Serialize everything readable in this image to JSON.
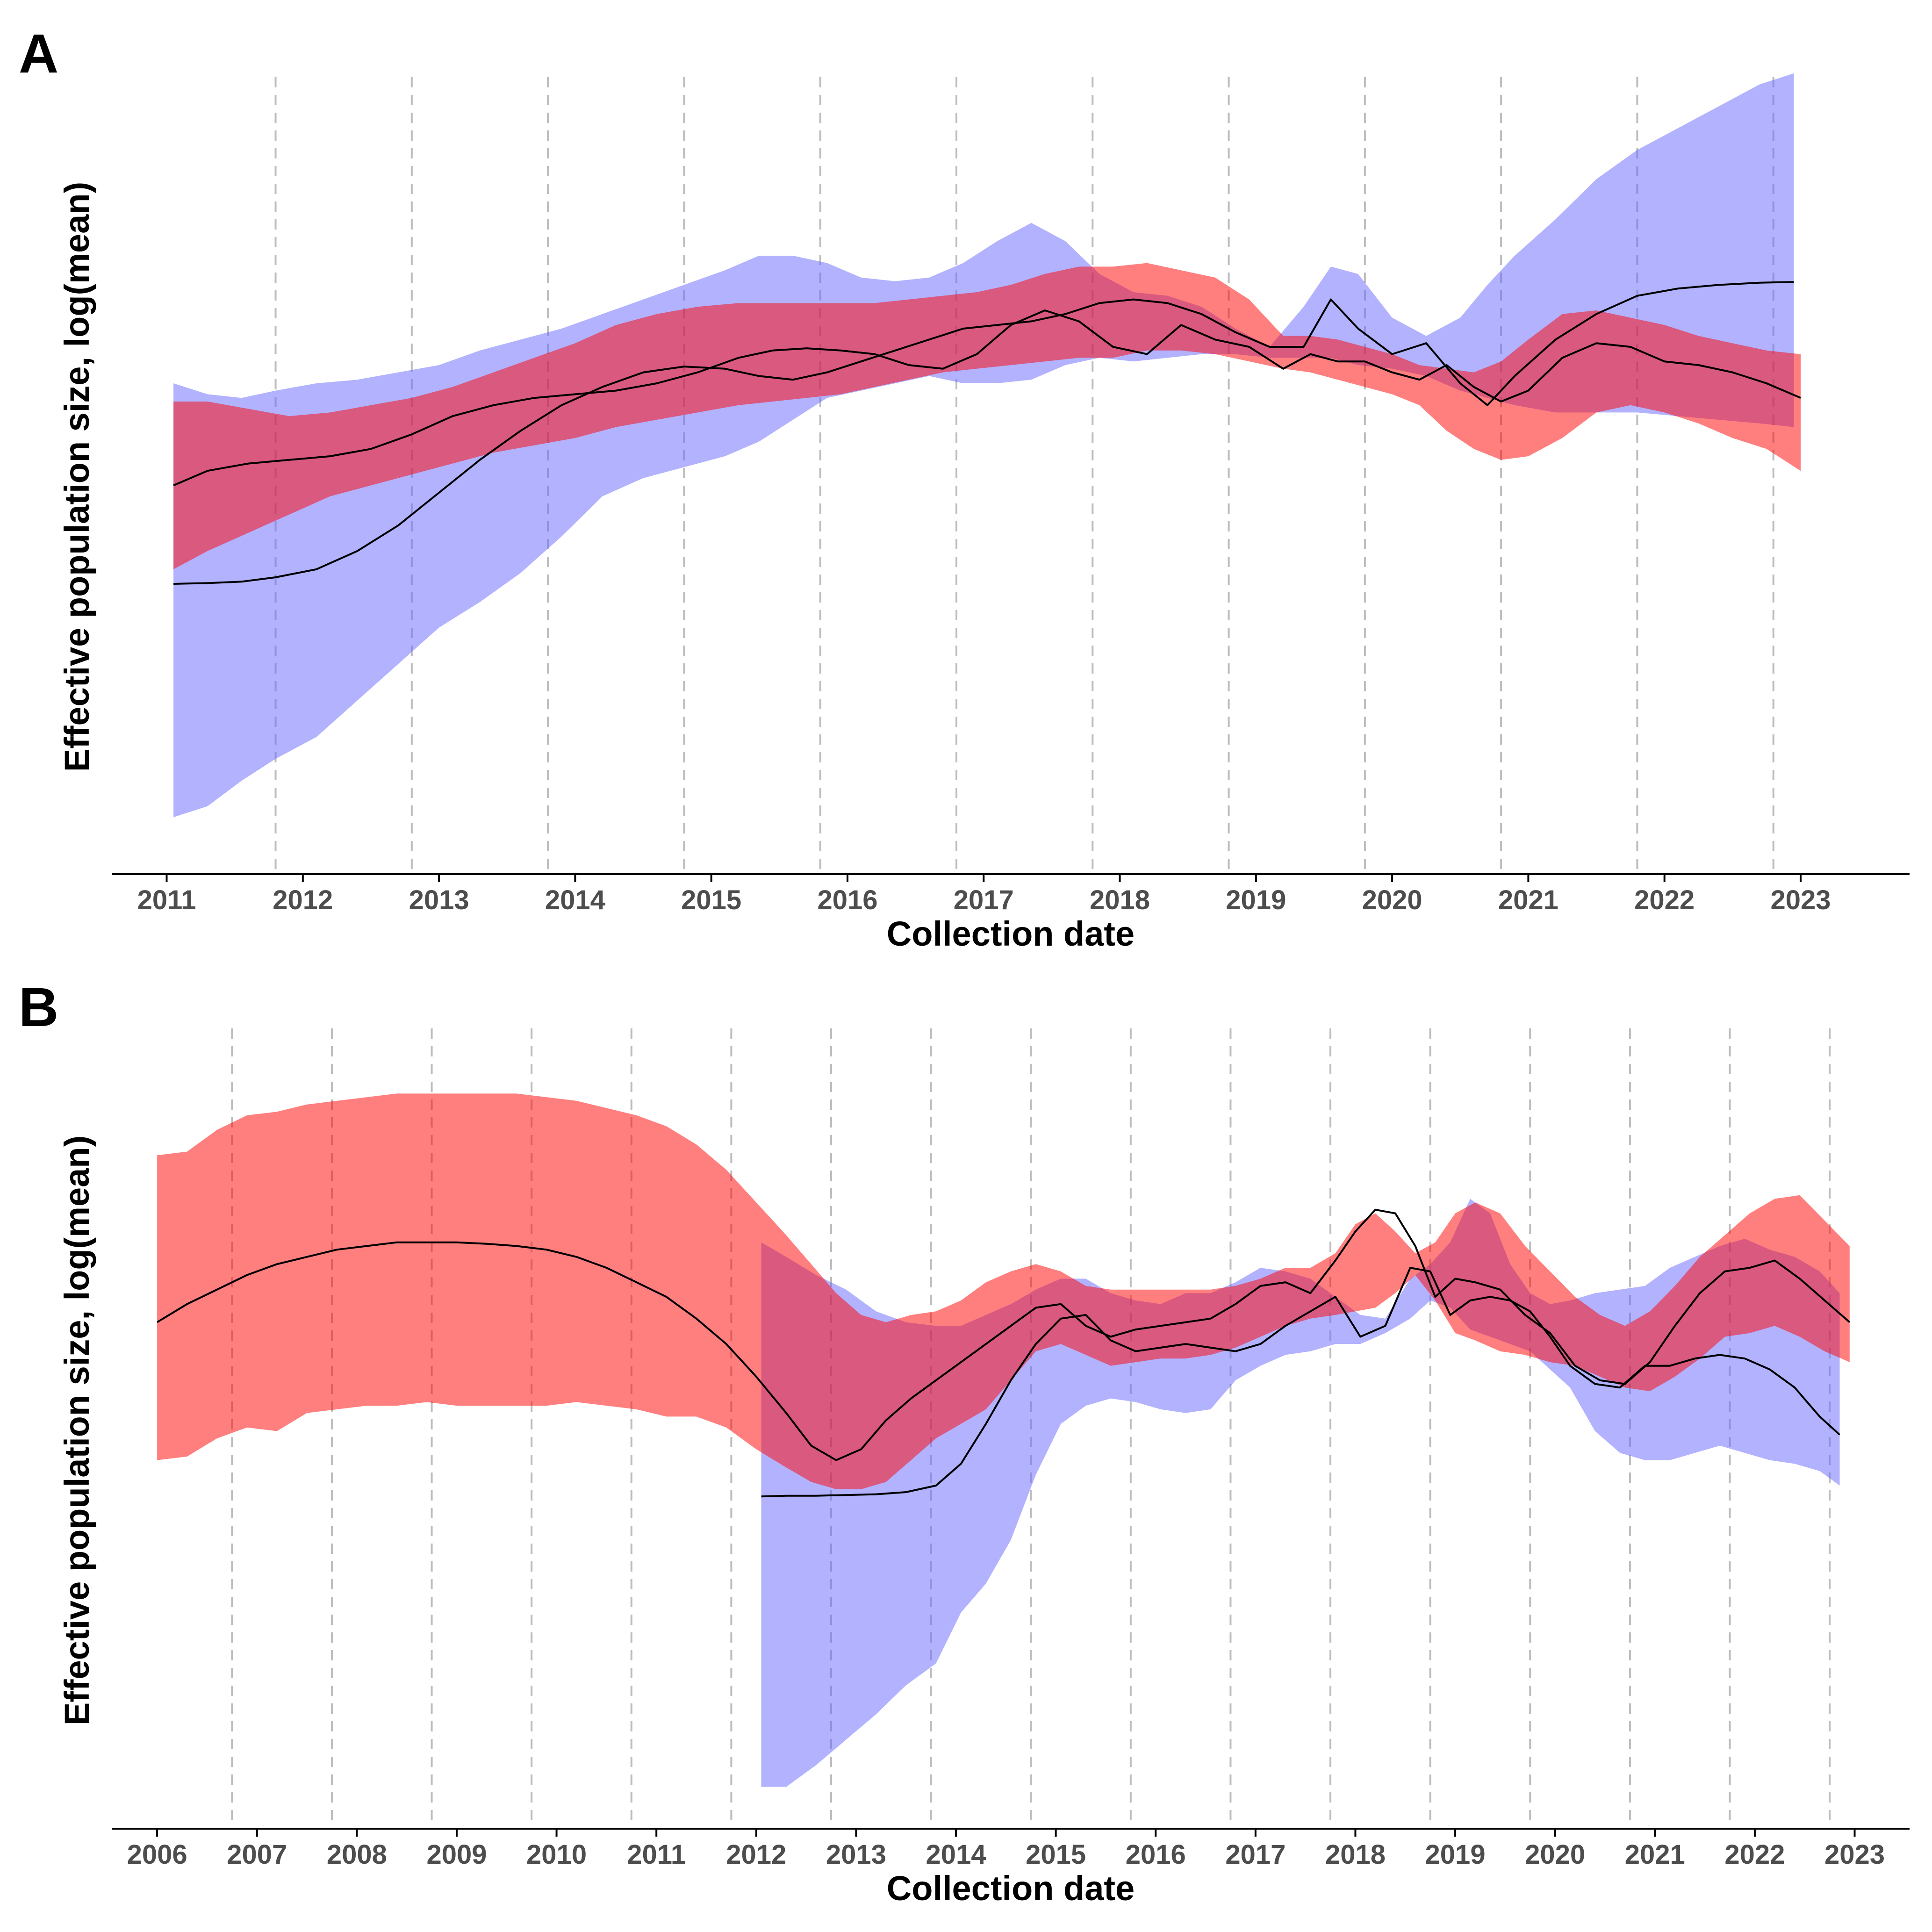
{
  "chart_data": [
    {
      "panel": "A",
      "type": "area",
      "xlabel": "Collection date",
      "ylabel": "Effective population size, log(mean)",
      "xlim": [
        2010.6,
        2023.8
      ],
      "ylim": [
        0,
        100
      ],
      "x_ticks": [
        2011,
        2012,
        2013,
        2014,
        2015,
        2016,
        2017,
        2018,
        2019,
        2020,
        2021,
        2022,
        2023
      ],
      "reference_lines": [
        2011.8,
        2012.8,
        2013.8,
        2014.8,
        2015.8,
        2016.8,
        2017.8,
        2018.8,
        2019.8,
        2020.8,
        2021.8,
        2022.8
      ],
      "grid": false,
      "series": [
        {
          "color": "#6666ff",
          "opacity": 0.5,
          "x": [
            2011.05,
            2011.3,
            2011.55,
            2011.8,
            2012.1,
            2012.4,
            2012.7,
            2013.0,
            2013.3,
            2013.6,
            2013.9,
            2014.2,
            2014.5,
            2014.8,
            2015.1,
            2015.35,
            2015.6,
            2015.85,
            2016.1,
            2016.35,
            2016.6,
            2016.85,
            2017.1,
            2017.35,
            2017.6,
            2017.85,
            2018.1,
            2018.35,
            2018.6,
            2018.85,
            2019.1,
            2019.35,
            2019.55,
            2019.75,
            2020.0,
            2020.25,
            2020.5,
            2020.7,
            2020.9,
            2021.2,
            2021.5,
            2021.8,
            2022.1,
            2022.4,
            2022.7,
            2022.95
          ],
          "mean": [
            35.0,
            35.1,
            35.3,
            35.9,
            37.0,
            39.5,
            43.0,
            47.5,
            52.0,
            56.0,
            59.5,
            62.0,
            64.0,
            64.8,
            64.5,
            63.5,
            63.0,
            64.0,
            65.5,
            67.0,
            68.5,
            70.0,
            70.5,
            71.0,
            72.0,
            73.5,
            74.0,
            73.5,
            72.0,
            69.5,
            67.5,
            67.5,
            74.0,
            70.0,
            66.5,
            68.0,
            62.5,
            59.5,
            63.5,
            68.5,
            72.0,
            74.5,
            75.5,
            76.0,
            76.3,
            76.4
          ],
          "lower": [
            3.0,
            4.5,
            8.0,
            11.0,
            14.0,
            19.0,
            24.0,
            29.0,
            32.5,
            36.5,
            41.5,
            47.0,
            49.5,
            51.0,
            52.5,
            54.5,
            57.5,
            60.5,
            61.5,
            62.5,
            63.5,
            62.5,
            62.5,
            63.0,
            65.0,
            66.0,
            65.5,
            66.0,
            66.5,
            66.5,
            66.0,
            66.0,
            66.0,
            65.0,
            64.5,
            63.5,
            61.5,
            60.5,
            59.5,
            58.5,
            58.5,
            58.5,
            58.0,
            57.5,
            57.0,
            56.5
          ],
          "upper": [
            62.5,
            61.0,
            60.5,
            61.5,
            62.5,
            63.0,
            64.0,
            65.0,
            67.0,
            68.5,
            70.0,
            72.0,
            74.0,
            76.0,
            78.0,
            80.0,
            80.0,
            79.0,
            77.0,
            76.5,
            77.0,
            79.0,
            82.0,
            84.5,
            82.0,
            77.5,
            75.0,
            74.5,
            73.0,
            70.0,
            67.5,
            73.0,
            78.5,
            77.5,
            71.5,
            69.0,
            71.5,
            76.0,
            80.0,
            85.0,
            90.5,
            94.5,
            97.5,
            100.5,
            103.5,
            105.0
          ]
        },
        {
          "color": "#ff0000",
          "opacity": 0.5,
          "x": [
            2011.05,
            2011.3,
            2011.6,
            2011.9,
            2012.2,
            2012.5,
            2012.8,
            2013.1,
            2013.4,
            2013.7,
            2014.0,
            2014.3,
            2014.6,
            2014.9,
            2015.2,
            2015.45,
            2015.7,
            2015.95,
            2016.2,
            2016.45,
            2016.7,
            2016.95,
            2017.2,
            2017.45,
            2017.7,
            2017.95,
            2018.2,
            2018.45,
            2018.7,
            2018.95,
            2019.2,
            2019.4,
            2019.6,
            2019.8,
            2020.0,
            2020.2,
            2020.4,
            2020.6,
            2020.8,
            2021.0,
            2021.25,
            2021.5,
            2021.75,
            2022.0,
            2022.25,
            2022.5,
            2022.75,
            2023.0
          ],
          "mean": [
            48.5,
            50.5,
            51.5,
            52.0,
            52.5,
            53.5,
            55.5,
            58.0,
            59.5,
            60.5,
            61.0,
            61.5,
            62.5,
            64.0,
            66.0,
            67.0,
            67.3,
            67.0,
            66.5,
            65.0,
            64.5,
            66.5,
            70.5,
            72.5,
            71.0,
            67.5,
            66.5,
            70.5,
            68.5,
            67.5,
            64.5,
            66.5,
            65.5,
            65.5,
            64.0,
            63.0,
            65.0,
            62.0,
            60.0,
            61.5,
            66.0,
            68.0,
            67.5,
            65.5,
            65.0,
            64.0,
            62.5,
            60.5
          ],
          "lower": [
            37.0,
            39.5,
            42.0,
            44.5,
            47.0,
            48.5,
            50.0,
            51.5,
            53.0,
            54.0,
            55.0,
            56.5,
            57.5,
            58.5,
            59.5,
            60.0,
            60.5,
            61.0,
            62.0,
            63.0,
            64.0,
            64.5,
            65.0,
            65.5,
            66.0,
            66.0,
            67.0,
            67.0,
            66.5,
            65.5,
            64.5,
            64.0,
            63.0,
            62.0,
            61.0,
            59.5,
            56.0,
            53.5,
            52.0,
            52.5,
            55.0,
            58.5,
            59.5,
            58.5,
            57.0,
            55.0,
            53.5,
            50.5
          ],
          "upper": [
            60.0,
            60.0,
            59.0,
            58.0,
            58.5,
            59.5,
            60.5,
            62.0,
            64.0,
            66.0,
            68.0,
            70.5,
            72.0,
            73.0,
            73.5,
            73.5,
            73.5,
            73.5,
            73.5,
            74.0,
            74.5,
            75.0,
            76.0,
            77.5,
            78.5,
            78.5,
            79.0,
            78.0,
            77.0,
            74.0,
            69.0,
            69.0,
            68.5,
            67.5,
            66.5,
            65.0,
            64.5,
            64.0,
            65.5,
            68.5,
            72.0,
            72.5,
            71.5,
            70.5,
            69.0,
            68.0,
            67.0,
            66.5
          ]
        }
      ]
    },
    {
      "panel": "B",
      "type": "area",
      "xlabel": "Collection date",
      "ylabel": "Effective population size, log(mean)",
      "xlim": [
        2005.55,
        2023.55
      ],
      "ylim": [
        0,
        100
      ],
      "x_ticks": [
        2006,
        2007,
        2008,
        2009,
        2010,
        2011,
        2012,
        2013,
        2014,
        2015,
        2016,
        2017,
        2018,
        2019,
        2020,
        2021,
        2022,
        2023
      ],
      "reference_lines": [
        2006.75,
        2007.75,
        2008.75,
        2009.75,
        2010.75,
        2011.75,
        2012.75,
        2013.75,
        2014.75,
        2015.75,
        2016.75,
        2017.75,
        2018.75,
        2019.75,
        2020.75,
        2021.75,
        2022.75
      ],
      "grid": false,
      "series": [
        {
          "color": "#6666ff",
          "opacity": 0.5,
          "x": [
            2012.05,
            2012.3,
            2012.6,
            2012.9,
            2013.2,
            2013.5,
            2013.8,
            2014.05,
            2014.3,
            2014.55,
            2014.8,
            2015.05,
            2015.3,
            2015.55,
            2015.8,
            2016.05,
            2016.3,
            2016.55,
            2016.8,
            2017.05,
            2017.3,
            2017.55,
            2017.8,
            2018.05,
            2018.3,
            2018.55,
            2018.75,
            2018.95,
            2019.15,
            2019.35,
            2019.55,
            2019.75,
            2019.95,
            2020.15,
            2020.4,
            2020.65,
            2020.9,
            2021.15,
            2021.4,
            2021.65,
            2021.9,
            2022.15,
            2022.4,
            2022.65,
            2022.85
          ],
          "mean": [
            41.0,
            41.1,
            41.1,
            41.2,
            41.3,
            41.6,
            42.5,
            45.5,
            51.0,
            57.0,
            62.0,
            65.5,
            66.0,
            62.5,
            61.0,
            61.5,
            62.0,
            61.5,
            61.0,
            62.0,
            64.5,
            66.5,
            68.5,
            63.0,
            64.5,
            72.5,
            72.0,
            66.0,
            68.0,
            68.5,
            68.0,
            66.5,
            63.0,
            59.0,
            56.5,
            56.0,
            59.0,
            59.0,
            60.0,
            60.5,
            60.0,
            58.5,
            56.0,
            52.0,
            49.5
          ],
          "lower": [
            1.0,
            1.0,
            4.0,
            7.5,
            11.0,
            15.0,
            18.0,
            25.0,
            29.0,
            35.0,
            44.0,
            51.0,
            53.5,
            54.5,
            54.0,
            53.0,
            52.5,
            53.0,
            57.0,
            59.0,
            60.5,
            61.0,
            62.0,
            62.0,
            63.5,
            65.5,
            68.0,
            67.0,
            64.0,
            63.0,
            62.0,
            61.0,
            58.5,
            56.0,
            50.0,
            47.0,
            46.0,
            46.0,
            47.0,
            48.0,
            47.0,
            46.0,
            45.5,
            44.5,
            42.5
          ],
          "upper": [
            76.0,
            74.0,
            71.5,
            69.5,
            66.5,
            65.0,
            64.5,
            64.5,
            66.0,
            67.5,
            69.5,
            71.0,
            71.0,
            69.0,
            68.0,
            67.5,
            69.0,
            69.0,
            70.5,
            72.5,
            72.0,
            71.0,
            68.5,
            66.0,
            65.5,
            71.0,
            73.0,
            76.0,
            82.0,
            80.0,
            73.0,
            69.0,
            67.5,
            68.0,
            69.0,
            69.5,
            70.0,
            72.5,
            74.0,
            75.5,
            76.5,
            75.0,
            74.0,
            72.0,
            69.0
          ]
        },
        {
          "color": "#ff0000",
          "opacity": 0.5,
          "x": [
            2006.0,
            2006.3,
            2006.6,
            2006.9,
            2007.2,
            2007.5,
            2007.8,
            2008.1,
            2008.4,
            2008.7,
            2009.0,
            2009.3,
            2009.6,
            2009.9,
            2010.2,
            2010.5,
            2010.8,
            2011.1,
            2011.4,
            2011.7,
            2012.0,
            2012.3,
            2012.55,
            2012.8,
            2013.05,
            2013.3,
            2013.55,
            2013.8,
            2014.05,
            2014.3,
            2014.55,
            2014.8,
            2015.05,
            2015.3,
            2015.55,
            2015.8,
            2016.05,
            2016.3,
            2016.55,
            2016.8,
            2017.05,
            2017.3,
            2017.55,
            2017.8,
            2018.0,
            2018.2,
            2018.4,
            2018.6,
            2018.8,
            2019.0,
            2019.2,
            2019.45,
            2019.7,
            2019.95,
            2020.2,
            2020.45,
            2020.7,
            2020.95,
            2021.2,
            2021.45,
            2021.7,
            2021.95,
            2022.2,
            2022.45,
            2022.7,
            2022.95
          ],
          "mean": [
            65.0,
            67.5,
            69.5,
            71.5,
            73.0,
            74.0,
            75.0,
            75.5,
            76.0,
            76.0,
            76.0,
            75.8,
            75.5,
            75.0,
            74.0,
            72.5,
            70.5,
            68.5,
            65.5,
            62.0,
            57.5,
            52.5,
            48.0,
            46.0,
            47.5,
            51.5,
            54.5,
            57.0,
            59.5,
            62.0,
            64.5,
            67.0,
            67.5,
            64.5,
            63.0,
            64.0,
            64.5,
            65.0,
            65.5,
            67.5,
            70.0,
            70.5,
            69.0,
            73.5,
            77.5,
            80.5,
            80.0,
            75.5,
            68.5,
            71.0,
            70.5,
            69.5,
            66.0,
            63.5,
            59.0,
            57.0,
            56.5,
            59.5,
            64.5,
            69.0,
            72.0,
            72.5,
            73.5,
            71.0,
            68.0,
            65.0
          ],
          "lower": [
            46.0,
            46.5,
            49.0,
            50.5,
            50.0,
            52.5,
            53.0,
            53.5,
            53.5,
            54.0,
            53.5,
            53.5,
            53.5,
            53.5,
            54.0,
            53.5,
            53.0,
            52.0,
            52.0,
            50.5,
            47.5,
            45.0,
            43.0,
            42.0,
            42.0,
            43.0,
            46.0,
            49.0,
            51.0,
            53.0,
            57.0,
            61.0,
            62.0,
            60.5,
            59.0,
            59.5,
            60.0,
            60.0,
            60.5,
            61.5,
            63.0,
            64.5,
            65.5,
            66.0,
            66.5,
            67.0,
            69.0,
            71.5,
            68.0,
            63.5,
            62.5,
            61.0,
            60.5,
            59.5,
            59.0,
            57.5,
            56.0,
            55.5,
            57.5,
            60.0,
            63.0,
            63.5,
            64.5,
            63.0,
            61.0,
            59.5
          ],
          "upper": [
            88.0,
            88.5,
            91.5,
            93.5,
            94.0,
            95.0,
            95.5,
            96.0,
            96.5,
            96.5,
            96.5,
            96.5,
            96.5,
            96.0,
            95.5,
            94.5,
            93.5,
            92.0,
            89.5,
            86.0,
            81.5,
            77.0,
            73.0,
            69.0,
            66.0,
            65.0,
            66.0,
            66.5,
            68.0,
            70.5,
            72.0,
            73.0,
            72.0,
            70.0,
            69.5,
            69.5,
            69.5,
            69.5,
            69.5,
            70.0,
            71.0,
            72.5,
            72.5,
            74.5,
            78.5,
            80.0,
            77.5,
            74.5,
            76.0,
            80.0,
            81.5,
            80.0,
            75.5,
            72.0,
            68.5,
            66.0,
            64.5,
            66.5,
            70.0,
            74.0,
            77.0,
            80.0,
            82.0,
            82.5,
            79.0,
            75.5
          ]
        }
      ]
    }
  ],
  "panels": [
    {
      "letter": "A",
      "xlabel": "Collection date",
      "ylabel": "Effective population size, log(mean)"
    },
    {
      "letter": "B",
      "xlabel": "Collection date",
      "ylabel": "Effective population size, log(mean)"
    }
  ]
}
